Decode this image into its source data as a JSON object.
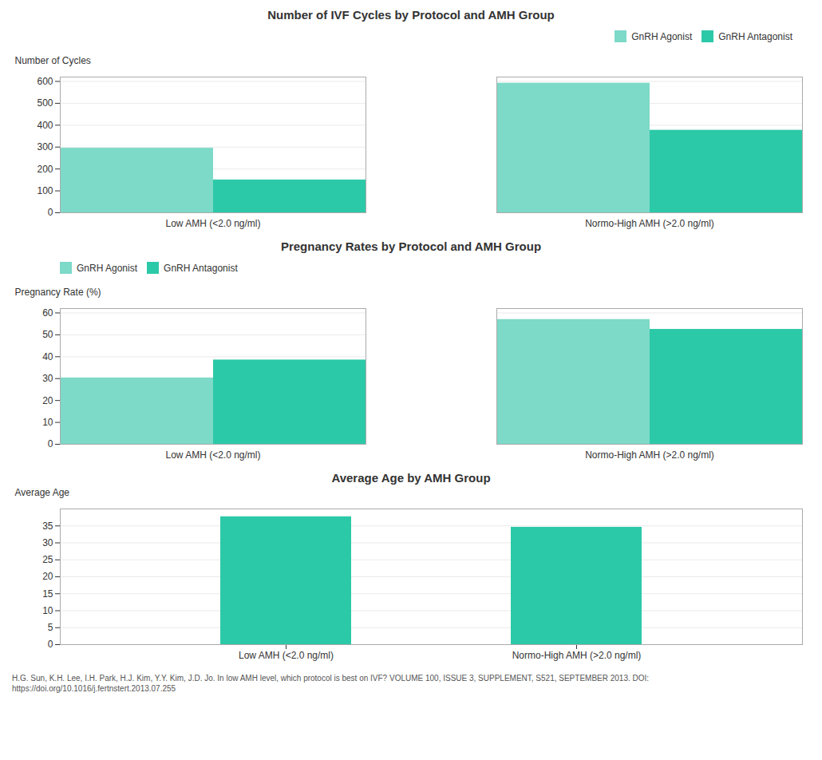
{
  "chart_data": [
    {
      "type": "bar",
      "title": "Number of IVF Cycles by Protocol and AMH Group",
      "ylabel": "Number of Cycles",
      "categories": [
        "Low AMH (<2.0 ng/ml)",
        "Normo-High AMH (>2.0 ng/ml)"
      ],
      "series": [
        {
          "name": "GnRH Agonist",
          "color": "#7DD9C8",
          "values": [
            295,
            592
          ]
        },
        {
          "name": "GnRH Antagonist",
          "color": "#2CC9A8",
          "values": [
            150,
            377
          ]
        }
      ],
      "ylim": [
        0,
        620
      ],
      "yticks": [
        0,
        100,
        200,
        300,
        400,
        500,
        600
      ],
      "grid": true,
      "legend": "upper right"
    },
    {
      "type": "bar",
      "title": "Pregnancy Rates by Protocol and AMH Group",
      "ylabel": "Pregnancy Rate (%)",
      "categories": [
        "Low AMH (<2.0 ng/ml)",
        "Normo-High AMH (>2.0 ng/ml)"
      ],
      "series": [
        {
          "name": "GnRH Agonist",
          "color": "#7DD9C8",
          "values": [
            30.3,
            57.0
          ]
        },
        {
          "name": "GnRH Antagonist",
          "color": "#2CC9A8",
          "values": [
            38.5,
            52.5
          ]
        }
      ],
      "ylim": [
        0,
        62
      ],
      "yticks": [
        0,
        10,
        20,
        30,
        40,
        50,
        60
      ],
      "grid": true,
      "legend": "upper left"
    },
    {
      "type": "bar",
      "title": "Average Age by AMH Group",
      "ylabel": "Average Age",
      "categories": [
        "Low AMH (<2.0 ng/ml)",
        "Normo-High AMH (>2.0 ng/ml)"
      ],
      "values": [
        37.7,
        34.6
      ],
      "color": "#2CC9A8",
      "ylim": [
        0,
        40
      ],
      "yticks": [
        0,
        5,
        10,
        15,
        20,
        25,
        30,
        35
      ],
      "grid": true
    }
  ],
  "caption": "H.G. Sun, K.H. Lee, I.H. Park, H.J. Kim, Y.Y. Kim, J.D. Jo. In low AMH level, which protocol is best on IVF? VOLUME 100, ISSUE 3, SUPPLEMENT, S521, SEPTEMBER 2013. DOI: https://doi.org/10.1016/j.fertnstert.2013.07.255"
}
